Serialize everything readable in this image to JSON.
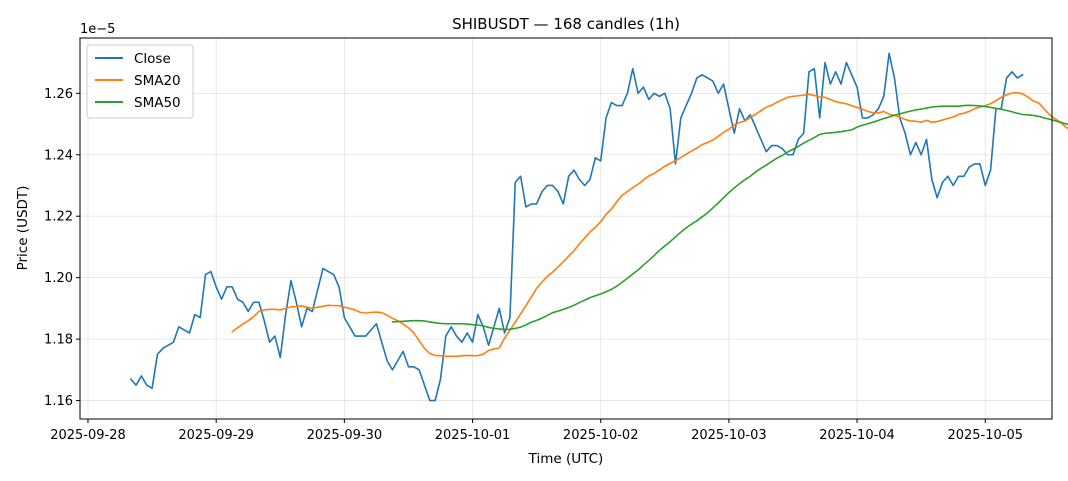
{
  "chart_data": {
    "type": "line",
    "title": "SHIBUSDT — 168 candles (1h)",
    "xlabel": "Time (UTC)",
    "ylabel": "Price (USDT)",
    "y_multiplier_label": "1e−5",
    "y_tick_labels": [
      "1.16",
      "1.18",
      "1.20",
      "1.22",
      "1.24",
      "1.26"
    ],
    "y_ticks": [
      1.16,
      1.18,
      1.2,
      1.22,
      1.24,
      1.26
    ],
    "ylim": [
      1.154,
      1.278
    ],
    "x_tick_labels": [
      "2025-09-28",
      "2025-09-29",
      "2025-09-30",
      "2025-10-01",
      "2025-10-02",
      "2025-10-03",
      "2025-10-04",
      "2025-10-05"
    ],
    "x_range_hours": [
      -9.5,
      172.5
    ],
    "x_start": "2025-09-28 08:00 UTC",
    "x_step": "1h",
    "grid": true,
    "legend_position": "top-left",
    "series": [
      {
        "name": "Close",
        "color": "#1f77b4",
        "values": [
          1.167,
          1.165,
          1.168,
          1.165,
          1.164,
          1.175,
          1.177,
          1.178,
          1.179,
          1.184,
          1.183,
          1.182,
          1.188,
          1.187,
          1.201,
          1.202,
          1.197,
          1.193,
          1.197,
          1.197,
          1.193,
          1.192,
          1.189,
          1.192,
          1.192,
          1.186,
          1.179,
          1.181,
          1.174,
          1.188,
          1.199,
          1.192,
          1.184,
          1.19,
          1.189,
          1.196,
          1.203,
          1.202,
          1.201,
          1.197,
          1.187,
          1.184,
          1.181,
          1.181,
          1.181,
          1.183,
          1.185,
          1.179,
          1.173,
          1.17,
          1.173,
          1.176,
          1.171,
          1.171,
          1.17,
          1.165,
          1.16,
          1.16,
          1.167,
          1.181,
          1.184,
          1.181,
          1.179,
          1.182,
          1.179,
          1.188,
          1.184,
          1.178,
          1.184,
          1.19,
          1.182,
          1.187,
          1.231,
          1.233,
          1.223,
          1.224,
          1.224,
          1.228,
          1.23,
          1.23,
          1.228,
          1.224,
          1.233,
          1.235,
          1.232,
          1.23,
          1.232,
          1.239,
          1.238,
          1.252,
          1.257,
          1.256,
          1.256,
          1.26,
          1.268,
          1.26,
          1.262,
          1.258,
          1.26,
          1.259,
          1.26,
          1.255,
          1.237,
          1.252,
          1.256,
          1.26,
          1.265,
          1.266,
          1.265,
          1.264,
          1.26,
          1.263,
          1.255,
          1.247,
          1.255,
          1.251,
          1.253,
          1.249,
          1.245,
          1.241,
          1.243,
          1.243,
          1.242,
          1.24,
          1.24,
          1.245,
          1.247,
          1.267,
          1.268,
          1.252,
          1.27,
          1.263,
          1.267,
          1.263,
          1.27,
          1.266,
          1.262,
          1.252,
          1.252,
          1.253,
          1.255,
          1.259,
          1.273,
          1.265,
          1.252,
          1.247,
          1.24,
          1.244,
          1.24,
          1.245,
          1.232,
          1.226,
          1.231,
          1.233,
          1.23,
          1.233,
          1.233,
          1.236,
          1.237,
          1.237,
          1.23,
          1.235,
          1.255,
          1.255,
          1.265,
          1.267,
          1.265,
          1.266
        ]
      },
      {
        "name": "SMA20",
        "color": "#ff7f0e",
        "start_index": 19,
        "values": [
          1.1824,
          1.1837,
          1.1849,
          1.186,
          1.1873,
          1.189,
          1.1895,
          1.1897,
          1.1897,
          1.1895,
          1.19,
          1.1905,
          1.1906,
          1.1908,
          1.1904,
          1.19,
          1.1904,
          1.1907,
          1.191,
          1.1909,
          1.1909,
          1.1904,
          1.19,
          1.1895,
          1.1887,
          1.1885,
          1.1887,
          1.1888,
          1.1886,
          1.1878,
          1.1868,
          1.186,
          1.1849,
          1.1837,
          1.182,
          1.1795,
          1.177,
          1.1753,
          1.1747,
          1.1746,
          1.1744,
          1.1744,
          1.1744,
          1.1746,
          1.1747,
          1.1746,
          1.1746,
          1.1751,
          1.1763,
          1.1768,
          1.1771,
          1.1803,
          1.1829,
          1.1855,
          1.1882,
          1.1909,
          1.1937,
          1.1965,
          1.1986,
          1.2004,
          1.2018,
          1.2035,
          1.2052,
          1.207,
          1.2088,
          1.211,
          1.2129,
          1.2149,
          1.2164,
          1.2182,
          1.2206,
          1.2223,
          1.2247,
          1.2268,
          1.228,
          1.2293,
          1.2304,
          1.2318,
          1.2331,
          1.2339,
          1.2351,
          1.2363,
          1.2372,
          1.2381,
          1.2391,
          1.2402,
          1.2412,
          1.2422,
          1.2433,
          1.244,
          1.2448,
          1.246,
          1.2473,
          1.2483,
          1.2497,
          1.2505,
          1.251,
          1.2521,
          1.2532,
          1.2543,
          1.2555,
          1.2561,
          1.2571,
          1.2579,
          1.2587,
          1.259,
          1.2592,
          1.2594,
          1.2597,
          1.2593,
          1.2588,
          1.2587,
          1.258,
          1.2573,
          1.2569,
          1.2566,
          1.256,
          1.2554,
          1.2548,
          1.2541,
          1.2537,
          1.2536,
          1.2541,
          1.2532,
          1.2528,
          1.2522,
          1.2515,
          1.251,
          1.2509,
          1.2506,
          1.2512,
          1.2506,
          1.2508,
          1.2513,
          1.2518,
          1.2523,
          1.2531,
          1.2535,
          1.2541,
          1.255,
          1.2555,
          1.256,
          1.2566,
          1.2576,
          1.2587,
          1.2595,
          1.2601,
          1.2602,
          1.2598,
          1.2588,
          1.2575,
          1.2569,
          1.255,
          1.2531,
          1.2518,
          1.2507,
          1.2491,
          1.2479,
          1.2466,
          1.2453,
          1.2442,
          1.2435,
          1.2432,
          1.2426,
          1.2418,
          1.2409,
          1.2401,
          1.239,
          1.2386,
          1.2384,
          1.2394,
          1.2403,
          1.2414,
          1.2425
        ]
      },
      {
        "name": "SMA50",
        "color": "#2ca02c",
        "start_index": 49,
        "values": [
          1.1856,
          1.1857,
          1.1858,
          1.1859,
          1.186,
          1.186,
          1.1859,
          1.1856,
          1.1853,
          1.1851,
          1.185,
          1.185,
          1.185,
          1.185,
          1.1849,
          1.1847,
          1.1846,
          1.1843,
          1.1838,
          1.1835,
          1.1833,
          1.1831,
          1.1832,
          1.1835,
          1.1839,
          1.1846,
          1.1855,
          1.1861,
          1.1868,
          1.1877,
          1.1886,
          1.1891,
          1.1897,
          1.1903,
          1.191,
          1.1919,
          1.1927,
          1.1935,
          1.1941,
          1.1947,
          1.1954,
          1.1962,
          1.1972,
          1.1985,
          1.1998,
          1.2012,
          1.2025,
          1.2041,
          1.2056,
          1.2072,
          1.2089,
          1.2103,
          1.2117,
          1.2133,
          1.2148,
          1.2162,
          1.2174,
          1.2185,
          1.2198,
          1.2211,
          1.2227,
          1.2243,
          1.226,
          1.2277,
          1.2292,
          1.2306,
          1.2319,
          1.233,
          1.2344,
          1.2356,
          1.2366,
          1.2378,
          1.2389,
          1.2398,
          1.2409,
          1.2418,
          1.2427,
          1.2438,
          1.2447,
          1.2456,
          1.2466,
          1.247,
          1.2471,
          1.2473,
          1.2475,
          1.2478,
          1.2481,
          1.249,
          1.2496,
          1.2501,
          1.2506,
          1.2512,
          1.2518,
          1.2523,
          1.2529,
          1.2533,
          1.2538,
          1.2542,
          1.2546,
          1.2549,
          1.2552,
          1.2555,
          1.2557,
          1.2558,
          1.2558,
          1.2558,
          1.2558,
          1.256,
          1.2561,
          1.256,
          1.2559,
          1.2557,
          1.2554,
          1.2551,
          1.2548,
          1.2544,
          1.254,
          1.2535,
          1.2531,
          1.253,
          1.2528,
          1.2525,
          1.252,
          1.2516,
          1.2511,
          1.2506,
          1.2501,
          1.2496,
          1.249,
          1.2486,
          1.2481,
          1.2481,
          1.2483,
          1.2484,
          1.2488,
          1.2491,
          1.2494
        ]
      }
    ]
  }
}
